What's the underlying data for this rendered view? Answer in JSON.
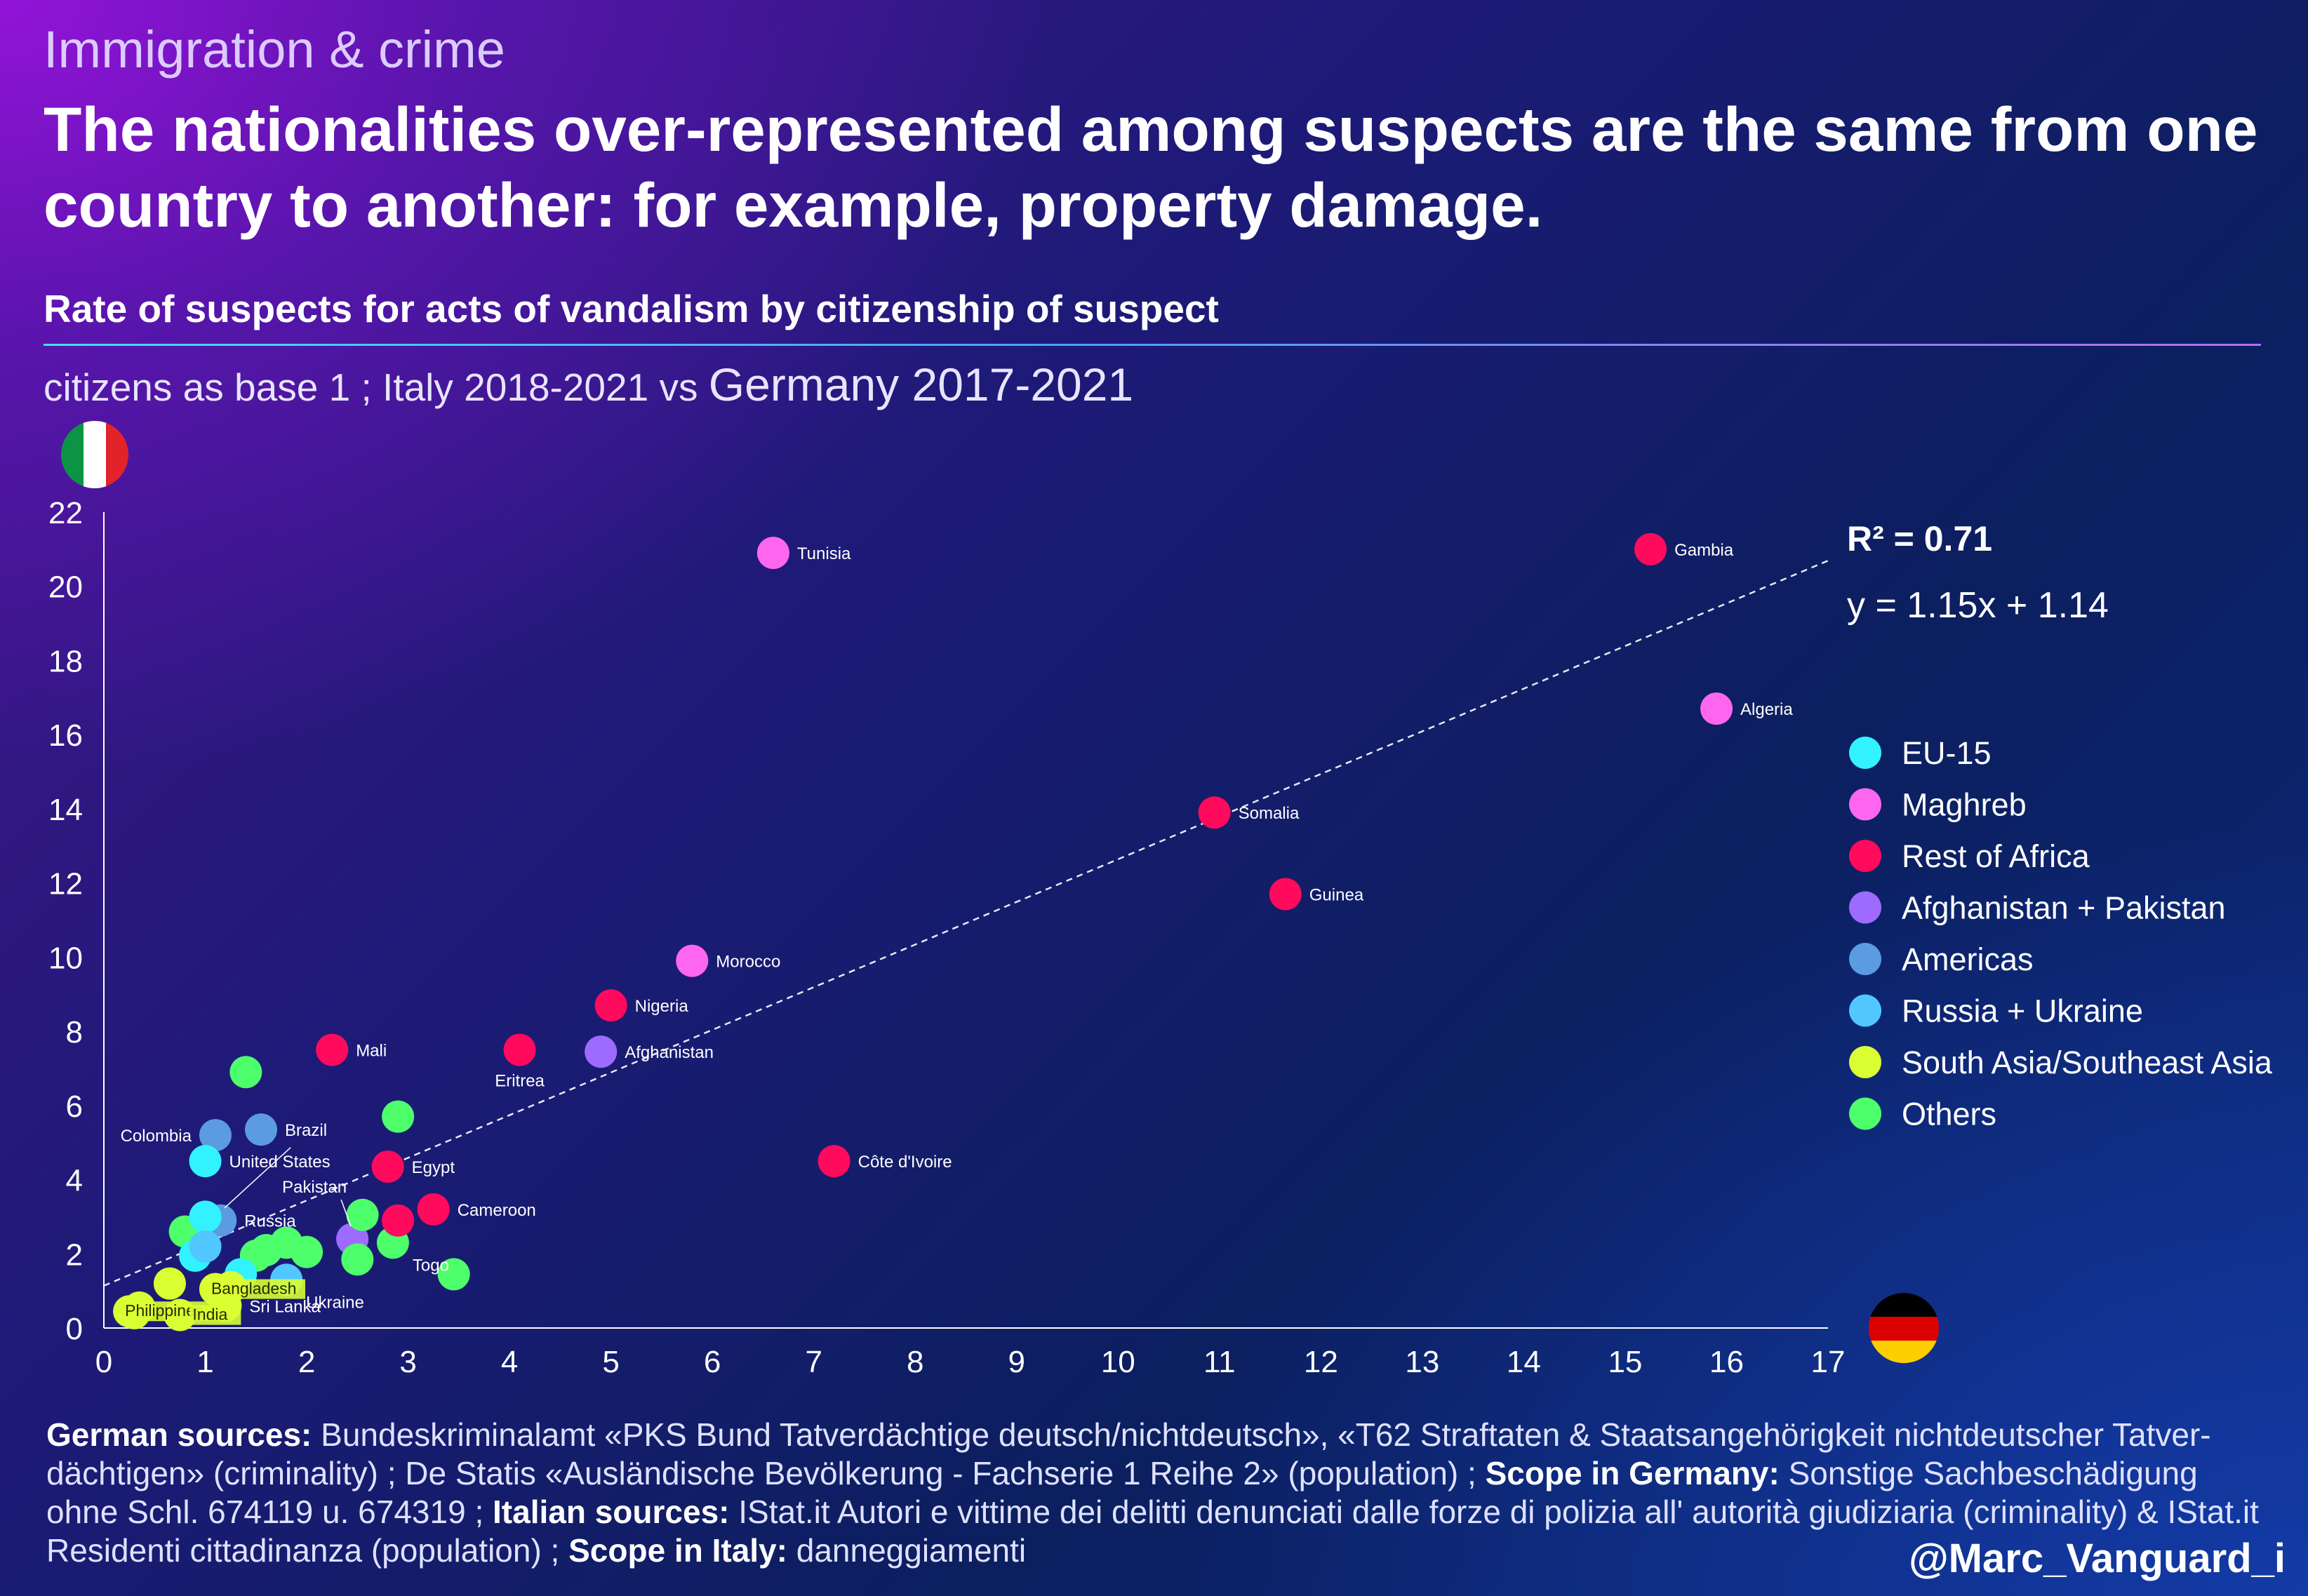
{
  "header": {
    "category": "Immigration & crime",
    "headline": "The nationalities over-represented among suspects are the same from one country to another: for example, property damage.",
    "chart_title": "Rate of suspects for acts of vandalism by citizenship of suspect",
    "subtitle_small": "citizens as base 1 ; Italy 2018-2021 vs ",
    "subtitle_big": "Germany 2017-2021"
  },
  "footer": {
    "german_sources_label": "German sources:",
    "german_sources_text": " Bundeskriminalamt «PKS Bund Tatverdächtige deutsch/nichtdeutsch», «T62 Straftaten & Staatsangehörigkeit nichtdeutscher Tatver-dächtigen» (criminality) ; De Statis «Ausländische Bevölkerung - Fachserie 1 Reihe 2» (population) ; ",
    "scope_germany_label": "Scope in Germany:",
    "scope_germany_text": " Sonstige Sachbeschädigung ohne Schl. 674119 u. 674319 ; ",
    "italian_sources_label": "Italian sources:",
    "italian_sources_text": " IStat.it Autori e vittime dei delitti denunciati dalle forze di polizia all' autorità giudiziaria (criminality) & IStat.it Residenti cittadinanza (population) ; ",
    "scope_italy_label": "Scope in Italy:",
    "scope_italy_text": " danneggiamenti",
    "handle": "@Marc_Vanguard_i"
  },
  "flags": {
    "italy": [
      "#0b9444",
      "#ffffff",
      "#e2232a"
    ],
    "germany": [
      "#000000",
      "#dd0000",
      "#ffce00"
    ]
  },
  "chart_data": {
    "type": "scatter",
    "x_axis_country": "Germany",
    "y_axis_country": "Italy",
    "xlim": [
      0,
      17
    ],
    "ylim": [
      0,
      22
    ],
    "xticks": [
      0,
      1,
      2,
      3,
      4,
      5,
      6,
      7,
      8,
      9,
      10,
      11,
      12,
      13,
      14,
      15,
      16,
      17
    ],
    "yticks": [
      0,
      2,
      4,
      6,
      8,
      10,
      12,
      14,
      16,
      18,
      20,
      22
    ],
    "grid": false,
    "legend_position": "right",
    "r2_label": "R² = 0.71",
    "equation": "y = 1.15x + 1.14",
    "trendline": {
      "slope": 1.15,
      "intercept": 1.14
    },
    "groups": [
      {
        "name": "EU-15",
        "color": "#33f2ff"
      },
      {
        "name": "Maghreb",
        "color": "#ff66f0"
      },
      {
        "name": "Rest of Africa",
        "color": "#ff0a5c"
      },
      {
        "name": "Afghanistan + Pakistan",
        "color": "#9d6bff"
      },
      {
        "name": "Americas",
        "color": "#5b9be0"
      },
      {
        "name": "Russia + Ukraine",
        "color": "#52c6ff"
      },
      {
        "name": "South Asia/Southeast Asia",
        "color": "#d9ff33"
      },
      {
        "name": "Others",
        "color": "#4dff6b"
      }
    ],
    "points": [
      {
        "label": "Tunisia",
        "x": 6.6,
        "y": 20.9,
        "group": "Maghreb"
      },
      {
        "label": "Gambia",
        "x": 15.25,
        "y": 21.0,
        "group": "Rest of Africa"
      },
      {
        "label": "Algeria",
        "x": 15.9,
        "y": 16.7,
        "group": "Maghreb"
      },
      {
        "label": "Somalia",
        "x": 10.95,
        "y": 13.9,
        "group": "Rest of Africa"
      },
      {
        "label": "Guinea",
        "x": 11.65,
        "y": 11.7,
        "group": "Rest of Africa"
      },
      {
        "label": "Morocco",
        "x": 5.8,
        "y": 9.9,
        "group": "Maghreb"
      },
      {
        "label": "Nigeria",
        "x": 5.0,
        "y": 8.7,
        "group": "Rest of Africa"
      },
      {
        "label": "Afghanistan",
        "x": 4.9,
        "y": 7.45,
        "group": "Afghanistan + Pakistan"
      },
      {
        "label": "Eritrea",
        "x": 4.1,
        "y": 7.5,
        "group": "Rest of Africa"
      },
      {
        "label": "Mali",
        "x": 2.25,
        "y": 7.5,
        "group": "Rest of Africa"
      },
      {
        "label": "Côte d'Ivoire",
        "x": 7.2,
        "y": 4.5,
        "group": "Rest of Africa"
      },
      {
        "label": "Egypt",
        "x": 2.8,
        "y": 4.35,
        "group": "Rest of Africa"
      },
      {
        "label": "Cameroon",
        "x": 3.25,
        "y": 3.2,
        "group": "Rest of Africa"
      },
      {
        "label": "Colombia",
        "x": 1.1,
        "y": 5.2,
        "group": "Americas"
      },
      {
        "label": "Brazil",
        "x": 1.55,
        "y": 5.35,
        "group": "Americas"
      },
      {
        "label": "United States",
        "x": 1.0,
        "y": 4.5,
        "group": "EU-15"
      },
      {
        "label": "Pakistan",
        "x": 2.45,
        "y": 2.4,
        "group": "Afghanistan + Pakistan"
      },
      {
        "label": "Russia",
        "x": 1.15,
        "y": 2.9,
        "group": "Americas"
      },
      {
        "label": "Togo",
        "x": 2.85,
        "y": 2.3,
        "group": "Others"
      },
      {
        "label": "Ukraine",
        "x": 1.8,
        "y": 1.3,
        "group": "Russia + Ukraine"
      },
      {
        "label": "Bangladesh",
        "x": 1.1,
        "y": 1.05,
        "group": "South Asia/Southeast Asia"
      },
      {
        "label": "Sri Lanka",
        "x": 1.2,
        "y": 0.6,
        "group": "South Asia/Southeast Asia"
      },
      {
        "label": "Philippines",
        "x": 0.25,
        "y": 0.45,
        "group": "South Asia/Southeast Asia"
      },
      {
        "label": "India",
        "x": 0.75,
        "y": 0.35,
        "group": "South Asia/Southeast Asia"
      },
      {
        "label": "",
        "x": 1.4,
        "y": 6.9,
        "group": "Others"
      },
      {
        "label": "",
        "x": 2.9,
        "y": 5.7,
        "group": "Others"
      },
      {
        "label": "",
        "x": 2.55,
        "y": 3.05,
        "group": "Others"
      },
      {
        "label": "",
        "x": 2.9,
        "y": 2.9,
        "group": "Rest of Africa"
      },
      {
        "label": "",
        "x": 3.45,
        "y": 1.45,
        "group": "Others"
      },
      {
        "label": "",
        "x": 2.5,
        "y": 1.85,
        "group": "Others"
      },
      {
        "label": "",
        "x": 2.0,
        "y": 2.05,
        "group": "Others"
      },
      {
        "label": "",
        "x": 1.8,
        "y": 2.3,
        "group": "Others"
      },
      {
        "label": "",
        "x": 1.6,
        "y": 2.1,
        "group": "Others"
      },
      {
        "label": "",
        "x": 1.5,
        "y": 1.95,
        "group": "Others"
      },
      {
        "label": "",
        "x": 0.8,
        "y": 2.6,
        "group": "Others"
      },
      {
        "label": "",
        "x": 1.0,
        "y": 3.0,
        "group": "EU-15"
      },
      {
        "label": "",
        "x": 0.9,
        "y": 1.95,
        "group": "EU-15"
      },
      {
        "label": "",
        "x": 1.0,
        "y": 2.2,
        "group": "Russia + Ukraine"
      },
      {
        "label": "",
        "x": 1.35,
        "y": 1.45,
        "group": "EU-15"
      },
      {
        "label": "",
        "x": 0.65,
        "y": 1.2,
        "group": "South Asia/Southeast Asia"
      },
      {
        "label": "",
        "x": 1.25,
        "y": 1.1,
        "group": "South Asia/Southeast Asia"
      },
      {
        "label": "",
        "x": 0.3,
        "y": 0.4,
        "group": "South Asia/Southeast Asia"
      },
      {
        "label": "",
        "x": 0.35,
        "y": 0.55,
        "group": "South Asia/Southeast Asia"
      }
    ]
  }
}
